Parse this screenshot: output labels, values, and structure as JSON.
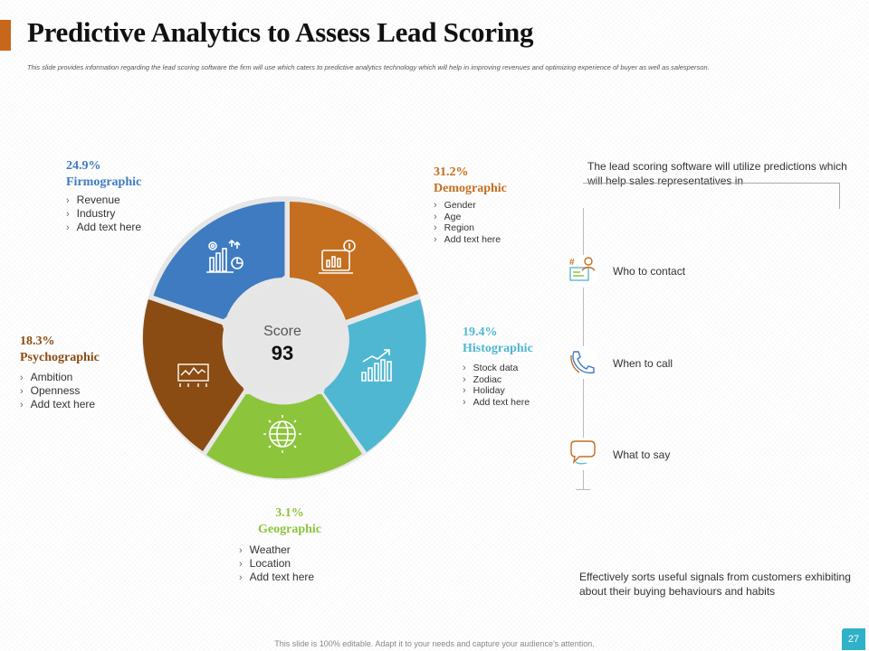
{
  "title": "Predictive Analytics to Assess Lead Scoring",
  "subtitle": "This slide provides information  regarding the lead scoring software the firm will use which caters to predictive analytics technology  which will help in improving  revenues and optimizing  experience  of buyer as well as salesperson.",
  "colors": {
    "accent": "#C8661A",
    "firmographic": "#3F7BC1",
    "demographic": "#C46E1F",
    "histographic": "#4FB7D1",
    "geographic": "#8CC43C",
    "psychographic": "#8A4C12"
  },
  "score": {
    "label": "Score",
    "value": "93"
  },
  "segments": {
    "firmographic": {
      "pct": "24.9%",
      "name": "Firmographic",
      "items": [
        "Revenue",
        "Industry",
        "Add text here"
      ],
      "icon": "chart-settings-icon"
    },
    "demographic": {
      "pct": "31.2%",
      "name": "Demographic",
      "items": [
        "Gender",
        "Age",
        "Region",
        "Add text here"
      ],
      "icon": "dashboard-idea-icon"
    },
    "histographic": {
      "pct": "19.4%",
      "name": "Histographic",
      "items": [
        "Stock data",
        "Zodiac",
        "Holiday",
        "Add text here"
      ],
      "icon": "growth-chart-icon"
    },
    "geographic": {
      "pct": "3.1%",
      "name": "Geographic",
      "items": [
        "Weather",
        "Location",
        "Add text here"
      ],
      "icon": "globe-icon"
    },
    "psychographic": {
      "pct": "18.3%",
      "name": "Psychographic",
      "items": [
        "Ambition",
        "Openness",
        "Add text here"
      ],
      "icon": "presentation-board-icon"
    }
  },
  "right": {
    "intro": "The lead scoring software will utilize predictions which will help sales representatives  in",
    "steps": [
      {
        "label": "Who to contact",
        "icon": "contact-card-icon"
      },
      {
        "label": "When to call",
        "icon": "phone-icon"
      },
      {
        "label": "What to say",
        "icon": "speech-bubble-icon"
      }
    ],
    "note": "Effectively  sorts useful signals from customers exhibiting about their buying behaviours  and habits"
  },
  "footer": "This slide is 100% editable. Adapt it to your needs and capture your audience's attention.",
  "page_number": "27"
}
